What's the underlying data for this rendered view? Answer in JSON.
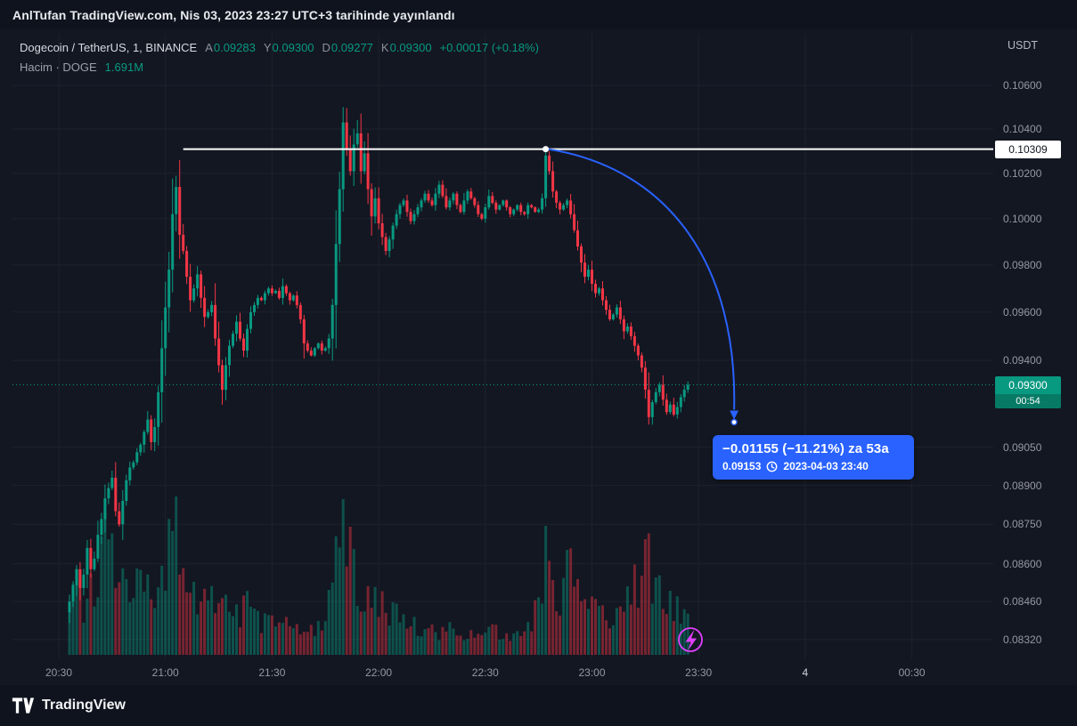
{
  "header": {
    "published": "AnlTufan TradingView.com, Nis 03, 2023 23:27 UTC+3 tarihinde yayınlandı"
  },
  "symbol_row": {
    "title": "Dogecoin / TetherUS, 1, BINANCE",
    "ohlc": [
      {
        "label": "A",
        "value": "0.09283"
      },
      {
        "label": "Y",
        "value": "0.09300"
      },
      {
        "label": "D",
        "value": "0.09277"
      },
      {
        "label": "K",
        "value": "0.09300"
      }
    ],
    "change": "+0.00017 (+0.18%)"
  },
  "volume_row": {
    "label": "Hacim · DOGE",
    "value": "1.691M"
  },
  "price_axis": {
    "currency": "USDT",
    "line_label": "0.10309",
    "last_price": "0.09300",
    "countdown": "00:54"
  },
  "tooltip": {
    "line1": "−0.01155 (−11.21%) za 53a",
    "price": "0.09153",
    "datetime": "2023-04-03  23:40"
  },
  "footer": {
    "brand": "TradingView"
  },
  "colors": {
    "up": "#089981",
    "down": "#f23645",
    "vol_up": "rgba(8,153,129,0.45)",
    "vol_down": "rgba(242,54,69,0.45)",
    "accent_blue": "#2962ff",
    "flash": "#e040fb",
    "grid": "#1e222d",
    "line_white": "#ffffff",
    "axis_text": "#9598a1",
    "background": "#131722"
  },
  "chart_data": {
    "type": "candlestick",
    "title": "Dogecoin / TetherUS 1 BINANCE",
    "price_scale": "logarithmic",
    "interval_minutes": 1,
    "ylim": [
      0.0825,
      0.1083
    ],
    "grid": true,
    "y_ticks": [
      0.106,
      0.104,
      0.102,
      0.1,
      0.098,
      0.096,
      0.094,
      0.0905,
      0.089,
      0.0875,
      0.086,
      0.0846,
      0.0832
    ],
    "y_tick_labels": [
      "0.10600",
      "0.10400",
      "0.10200",
      "0.10000",
      "0.09800",
      "0.09600",
      "0.09400",
      "0.09050",
      "0.08900",
      "0.08750",
      "0.08600",
      "0.08460",
      "0.08320"
    ],
    "x_ticks": [
      {
        "label": "20:30",
        "minute": 0
      },
      {
        "label": "21:00",
        "minute": 30
      },
      {
        "label": "21:30",
        "minute": 60
      },
      {
        "label": "22:00",
        "minute": 90
      },
      {
        "label": "22:30",
        "minute": 120
      },
      {
        "label": "23:00",
        "minute": 150
      },
      {
        "label": "23:30",
        "minute": 180
      },
      {
        "label": "4",
        "minute": 210,
        "major": true
      },
      {
        "label": "00:30",
        "minute": 240
      }
    ],
    "first_open": 0.0842,
    "closes": [
      [
        3,
        0.0846
      ],
      [
        4,
        0.0852
      ],
      [
        5,
        0.0858
      ],
      [
        6,
        0.0851
      ],
      [
        7,
        0.0856
      ],
      [
        8,
        0.0866
      ],
      [
        9,
        0.0858
      ],
      [
        10,
        0.0862
      ],
      [
        11,
        0.0871
      ],
      [
        12,
        0.0877
      ],
      [
        13,
        0.0885
      ],
      [
        14,
        0.0889
      ],
      [
        15,
        0.0893
      ],
      [
        16,
        0.088
      ],
      [
        17,
        0.0875
      ],
      [
        18,
        0.0884
      ],
      [
        19,
        0.0892
      ],
      [
        20,
        0.0897
      ],
      [
        21,
        0.0899
      ],
      [
        22,
        0.0903
      ],
      [
        23,
        0.0906
      ],
      [
        24,
        0.0911
      ],
      [
        25,
        0.0916
      ],
      [
        26,
        0.0907
      ],
      [
        27,
        0.0913
      ],
      [
        28,
        0.0927
      ],
      [
        29,
        0.0945
      ],
      [
        30,
        0.0962
      ],
      [
        31,
        0.0978
      ],
      [
        32,
        0.1002
      ],
      [
        33,
        0.1014
      ],
      [
        34,
        0.0993
      ],
      [
        35,
        0.0986
      ],
      [
        36,
        0.0975
      ],
      [
        37,
        0.0965
      ],
      [
        38,
        0.097
      ],
      [
        39,
        0.0976
      ],
      [
        40,
        0.0966
      ],
      [
        41,
        0.0958
      ],
      [
        42,
        0.096
      ],
      [
        43,
        0.0963
      ],
      [
        44,
        0.0949
      ],
      [
        45,
        0.0938
      ],
      [
        46,
        0.0928
      ],
      [
        47,
        0.0938
      ],
      [
        48,
        0.0946
      ],
      [
        49,
        0.0951
      ],
      [
        50,
        0.0956
      ],
      [
        51,
        0.0949
      ],
      [
        52,
        0.0944
      ],
      [
        53,
        0.0953
      ],
      [
        54,
        0.096
      ],
      [
        55,
        0.0963
      ],
      [
        56,
        0.0966
      ],
      [
        57,
        0.0965
      ],
      [
        58,
        0.0968
      ],
      [
        59,
        0.097
      ],
      [
        60,
        0.0968
      ],
      [
        61,
        0.0969
      ],
      [
        62,
        0.0966
      ],
      [
        63,
        0.0971
      ],
      [
        64,
        0.0968
      ],
      [
        65,
        0.0965
      ],
      [
        66,
        0.0967
      ],
      [
        67,
        0.0963
      ],
      [
        68,
        0.0957
      ],
      [
        69,
        0.0947
      ],
      [
        70,
        0.0944
      ],
      [
        71,
        0.0942
      ],
      [
        72,
        0.0945
      ],
      [
        73,
        0.0947
      ],
      [
        74,
        0.0944
      ],
      [
        75,
        0.0945
      ],
      [
        76,
        0.0949
      ],
      [
        77,
        0.0963
      ],
      [
        78,
        0.0989
      ],
      [
        79,
        0.1013
      ],
      [
        80,
        0.1043
      ],
      [
        81,
        0.1031
      ],
      [
        82,
        0.1021
      ],
      [
        83,
        0.1033
      ],
      [
        84,
        0.1038
      ],
      [
        85,
        0.1021
      ],
      [
        86,
        0.1029
      ],
      [
        87,
        0.1013
      ],
      [
        88,
        0.1001
      ],
      [
        89,
        0.1009
      ],
      [
        90,
        0.0998
      ],
      [
        91,
        0.0992
      ],
      [
        92,
        0.0986
      ],
      [
        93,
        0.0991
      ],
      [
        94,
        0.0997
      ],
      [
        95,
        0.1002
      ],
      [
        96,
        0.1006
      ],
      [
        97,
        0.1008
      ],
      [
        98,
        0.1003
      ],
      [
        99,
        0.0999
      ],
      [
        100,
        0.1002
      ],
      [
        101,
        0.1005
      ],
      [
        102,
        0.1008
      ],
      [
        103,
        0.1011
      ],
      [
        104,
        0.1008
      ],
      [
        105,
        0.1006
      ],
      [
        106,
        0.1011
      ],
      [
        107,
        0.1015
      ],
      [
        108,
        0.101
      ],
      [
        109,
        0.1005
      ],
      [
        110,
        0.1008
      ],
      [
        111,
        0.1011
      ],
      [
        112,
        0.1006
      ],
      [
        113,
        0.1003
      ],
      [
        114,
        0.1008
      ],
      [
        115,
        0.1012
      ],
      [
        116,
        0.1009
      ],
      [
        117,
        0.1006
      ],
      [
        118,
        0.1002
      ],
      [
        119,
        0.1
      ],
      [
        120,
        0.1005
      ],
      [
        121,
        0.101
      ],
      [
        122,
        0.1007
      ],
      [
        123,
        0.1004
      ],
      [
        124,
        0.1006
      ],
      [
        125,
        0.1008
      ],
      [
        126,
        0.1005
      ],
      [
        127,
        0.1002
      ],
      [
        128,
        0.1004
      ],
      [
        129,
        0.1006
      ],
      [
        130,
        0.1003
      ],
      [
        131,
        0.1002
      ],
      [
        132,
        0.1006
      ],
      [
        133,
        0.1005
      ],
      [
        134,
        0.1003
      ],
      [
        135,
        0.1004
      ],
      [
        136,
        0.1009
      ],
      [
        137,
        0.1028
      ],
      [
        138,
        0.1021
      ],
      [
        139,
        0.1012
      ],
      [
        140,
        0.1007
      ],
      [
        141,
        0.1004
      ],
      [
        142,
        0.1006
      ],
      [
        143,
        0.1008
      ],
      [
        144,
        0.1002
      ],
      [
        145,
        0.0995
      ],
      [
        146,
        0.0988
      ],
      [
        147,
        0.0981
      ],
      [
        148,
        0.0975
      ],
      [
        149,
        0.0978
      ],
      [
        150,
        0.0972
      ],
      [
        151,
        0.0968
      ],
      [
        152,
        0.097
      ],
      [
        153,
        0.0965
      ],
      [
        154,
        0.0961
      ],
      [
        155,
        0.0957
      ],
      [
        156,
        0.0959
      ],
      [
        157,
        0.0962
      ],
      [
        158,
        0.0957
      ],
      [
        159,
        0.0952
      ],
      [
        160,
        0.0954
      ],
      [
        161,
        0.095
      ],
      [
        162,
        0.0946
      ],
      [
        163,
        0.0942
      ],
      [
        164,
        0.0937
      ],
      [
        165,
        0.0928
      ],
      [
        166,
        0.0917
      ],
      [
        167,
        0.0923
      ],
      [
        168,
        0.0927
      ],
      [
        169,
        0.093
      ],
      [
        170,
        0.0924
      ],
      [
        171,
        0.0919
      ],
      [
        172,
        0.0922
      ],
      [
        173,
        0.0918
      ],
      [
        174,
        0.0921
      ],
      [
        175,
        0.0925
      ],
      [
        176,
        0.0928
      ],
      [
        177,
        0.093
      ]
    ],
    "wick_overrides": {
      "3": {
        "low": 0.0838
      },
      "8": {
        "high": 0.0869
      },
      "33": {
        "high": 0.1019
      },
      "46": {
        "low": 0.0922
      },
      "80": {
        "high": 0.105
      },
      "84": {
        "high": 0.1044
      },
      "137": {
        "high": 0.10309
      },
      "166": {
        "low": 0.0914
      }
    },
    "volume_waypoints": [
      [
        3,
        55
      ],
      [
        5,
        75
      ],
      [
        7,
        60
      ],
      [
        9,
        85
      ],
      [
        11,
        100
      ],
      [
        13,
        160
      ],
      [
        15,
        120
      ],
      [
        17,
        90
      ],
      [
        19,
        110
      ],
      [
        21,
        70
      ],
      [
        23,
        85
      ],
      [
        25,
        75
      ],
      [
        27,
        65
      ],
      [
        29,
        100
      ],
      [
        31,
        135
      ],
      [
        33,
        150
      ],
      [
        35,
        110
      ],
      [
        37,
        85
      ],
      [
        39,
        70
      ],
      [
        41,
        62
      ],
      [
        43,
        66
      ],
      [
        45,
        82
      ],
      [
        47,
        58
      ],
      [
        49,
        48
      ],
      [
        51,
        52
      ],
      [
        53,
        60
      ],
      [
        55,
        46
      ],
      [
        57,
        40
      ],
      [
        59,
        46
      ],
      [
        61,
        40
      ],
      [
        63,
        36
      ],
      [
        65,
        30
      ],
      [
        67,
        36
      ],
      [
        69,
        42
      ],
      [
        71,
        36
      ],
      [
        73,
        30
      ],
      [
        75,
        42
      ],
      [
        77,
        95
      ],
      [
        79,
        150
      ],
      [
        80,
        175
      ],
      [
        81,
        150
      ],
      [
        83,
        105
      ],
      [
        85,
        82
      ],
      [
        87,
        72
      ],
      [
        89,
        62
      ],
      [
        91,
        56
      ],
      [
        93,
        52
      ],
      [
        95,
        46
      ],
      [
        97,
        42
      ],
      [
        99,
        36
      ],
      [
        101,
        32
      ],
      [
        103,
        36
      ],
      [
        105,
        30
      ],
      [
        107,
        28
      ],
      [
        109,
        33
      ],
      [
        111,
        28
      ],
      [
        113,
        25
      ],
      [
        115,
        31
      ],
      [
        117,
        26
      ],
      [
        119,
        28
      ],
      [
        121,
        25
      ],
      [
        123,
        28
      ],
      [
        125,
        24
      ],
      [
        127,
        26
      ],
      [
        129,
        24
      ],
      [
        131,
        30
      ],
      [
        133,
        40
      ],
      [
        135,
        60
      ],
      [
        136,
        100
      ],
      [
        137,
        145
      ],
      [
        139,
        72
      ],
      [
        141,
        52
      ],
      [
        143,
        115
      ],
      [
        145,
        85
      ],
      [
        147,
        62
      ],
      [
        149,
        50
      ],
      [
        151,
        56
      ],
      [
        153,
        46
      ],
      [
        155,
        52
      ],
      [
        157,
        46
      ],
      [
        159,
        56
      ],
      [
        161,
        66
      ],
      [
        163,
        92
      ],
      [
        165,
        130
      ],
      [
        167,
        100
      ],
      [
        169,
        72
      ],
      [
        171,
        56
      ],
      [
        173,
        62
      ],
      [
        175,
        46
      ],
      [
        177,
        40
      ]
    ],
    "volume_spikes": {
      "13": 160,
      "80": 175,
      "137": 145,
      "143": 118,
      "165": 130
    },
    "level_line": {
      "price": 0.10309,
      "start_minute": 35
    },
    "current_price": 0.093,
    "projection_arrow": {
      "from_minute": 137,
      "from_price": 0.10309,
      "to_minute": 190,
      "to_price": 0.09153
    }
  }
}
